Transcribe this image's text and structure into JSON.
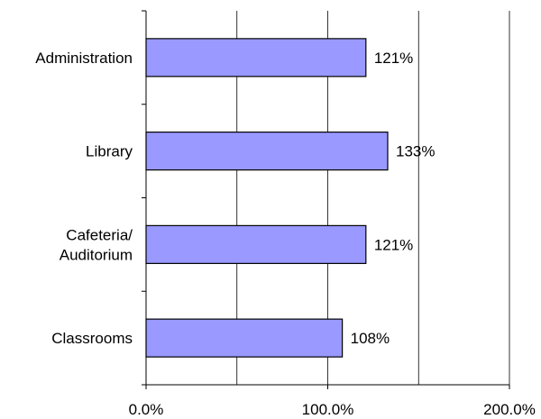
{
  "chart_data": {
    "type": "bar",
    "orientation": "horizontal",
    "title": "",
    "xlabel": "",
    "ylabel": "",
    "categories": [
      [
        "Administration"
      ],
      [
        "Library"
      ],
      [
        "Cafeteria/",
        "Auditorium"
      ],
      [
        "Classrooms"
      ]
    ],
    "values": [
      121,
      133,
      121,
      108
    ],
    "data_labels": [
      "121%",
      "133%",
      "121%",
      "108%"
    ],
    "xlim": [
      0,
      200
    ],
    "x_ticks": [
      0,
      100,
      200
    ],
    "x_tick_labels": [
      "0.0%",
      "100.0%",
      "200.0%"
    ],
    "gridlines_at": [
      50,
      100,
      150,
      200
    ],
    "grid": true,
    "legend": "none",
    "colors": {
      "bar_fill": "#9999ff",
      "bar_stroke": "#000000",
      "gridline": "#000000",
      "axis": "#000000"
    }
  }
}
